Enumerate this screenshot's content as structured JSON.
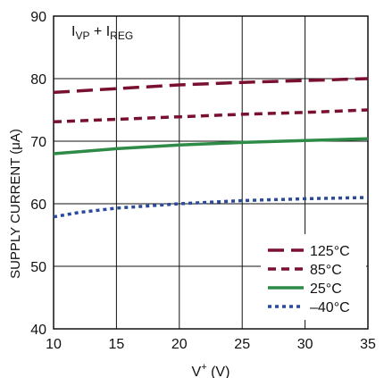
{
  "chart_data": {
    "type": "line",
    "annotation": {
      "main": "I",
      "sub1": "VP",
      "mid": " + I",
      "sub2": "REG"
    },
    "xlabel": {
      "main": "V",
      "sup": "+",
      "unit": "  (V)"
    },
    "ylabel": "SUPPLY CURRENT (μA)",
    "xlim": [
      10,
      35
    ],
    "ylim": [
      40,
      90
    ],
    "xticks": [
      "10",
      "15",
      "20",
      "25",
      "30",
      "35"
    ],
    "yticks": [
      "40",
      "50",
      "60",
      "70",
      "80",
      "90"
    ],
    "grid": true,
    "legend_position": "bottom-right",
    "series": [
      {
        "name": "125°C",
        "color": "#7a1030",
        "dash": "long-dash",
        "x": [
          10,
          15,
          20,
          25,
          30,
          35
        ],
        "y": [
          77.8,
          78.4,
          79.0,
          79.4,
          79.7,
          80.0
        ]
      },
      {
        "name": "85°C",
        "color": "#7a1030",
        "dash": "short-dash",
        "x": [
          10,
          15,
          20,
          25,
          30,
          35
        ],
        "y": [
          73.1,
          73.5,
          73.9,
          74.3,
          74.6,
          75.0
        ]
      },
      {
        "name": "25°C",
        "color": "#2e8b47",
        "dash": "solid",
        "x": [
          10,
          15,
          20,
          25,
          30,
          35
        ],
        "y": [
          68.0,
          68.8,
          69.4,
          69.8,
          70.1,
          70.4
        ]
      },
      {
        "name": "–40°C",
        "color": "#2a4a9e",
        "dash": "dotted",
        "x": [
          10,
          12,
          15,
          20,
          25,
          30,
          35
        ],
        "y": [
          57.9,
          58.6,
          59.3,
          60.0,
          60.5,
          60.8,
          61.0
        ]
      }
    ]
  }
}
